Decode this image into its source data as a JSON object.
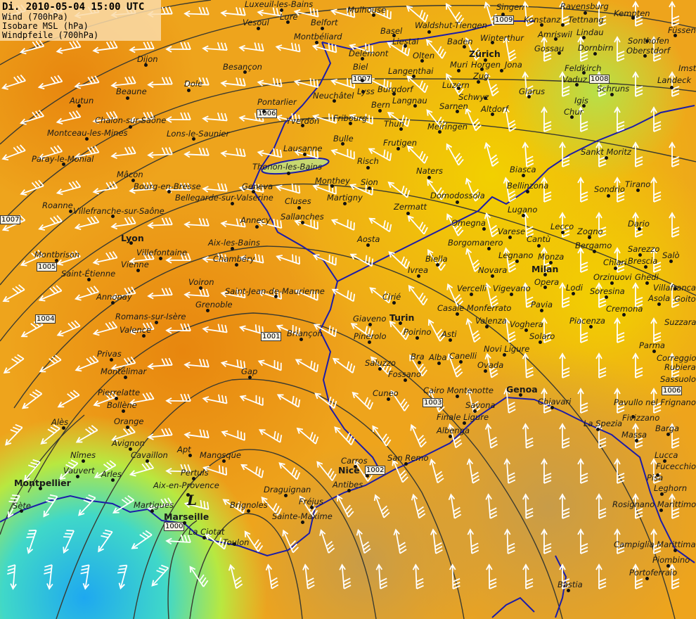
{
  "header": {
    "datetime": "Di. 2010-05-04 15:00 UTC",
    "layers": [
      "Wind (700hPa)",
      "Isobare MSL (hPa)",
      "Windpfeile (700hPa)"
    ]
  },
  "low_marker": "L",
  "colors": {
    "coast": "#1c1ca8",
    "isobar": "#3a3a30",
    "barb": "#ffffff",
    "orange": "#ec9418",
    "yellow": "#f0c808",
    "lime": "#c8e040",
    "cyan": "#30c8e8",
    "sea": "#c8a848"
  },
  "isobar_labels": [
    "1009",
    "1008",
    "1007",
    "1007",
    "1006",
    "1006",
    "1005",
    "1004",
    "1003",
    "1002",
    "1001",
    "1000",
    "1006"
  ],
  "cities": [
    "Luxeuil-les-Bains",
    "Vesoul",
    "Lure",
    "Belfort",
    "Mulhouse",
    "Singen",
    "Konstanz",
    "Tettnang",
    "Ravensburg",
    "Kempten",
    "Füssen",
    "Waldshut-Tiengen",
    "Basel",
    "Winterthur",
    "Amriswil",
    "Lindau",
    "Sonthofen",
    "Montbéliard",
    "Liestal",
    "Baden",
    "Gossau",
    "Dornbirn",
    "Oberstdorf",
    "Delémont",
    "Olten",
    "Zürich",
    "Dijon",
    "Besançon",
    "Langenthai",
    "Muri",
    "Horgen",
    "Jona",
    "Feldkirch",
    "Vaduz",
    "Imst",
    "Landeck",
    "Zug",
    "Biel",
    "Lyss",
    "Luzern",
    "Schwyz",
    "Glarus",
    "Schruns",
    "Beaune",
    "Autun",
    "Dole",
    "Pontarlier",
    "Neuchâtel",
    "Burgdorf",
    "Bern",
    "Langnau",
    "Sarnen",
    "Altdorf",
    "Igis",
    "Chur",
    "Yverdon",
    "Fribourg",
    "Thun",
    "Meiringen",
    "Chalon-sur-Saône",
    "Montceau-les-Mines",
    "Lons-le-Saunier",
    "Bulle",
    "Frutigen",
    "Lausanne",
    "Sankt Moritz",
    "Paray-le-Monial",
    "Risch",
    "Naters",
    "Biasca",
    "Thonon-les-Bains",
    "Mâcon",
    "Bourg-en-Bresse",
    "Geneva",
    "Monthey",
    "Sion",
    "Bellinzona",
    "Sondrio",
    "Tirano",
    "Bellegarde-sur-Valserine",
    "Martigny",
    "Domodossola",
    "Roanne",
    "Villefranche-sur-Saône",
    "Cluses",
    "Zermatt",
    "Lugano",
    "Sallanches",
    "Annecy",
    "Omegna",
    "Varese",
    "Lecco",
    "Zogno",
    "Dario",
    "Lyon",
    "Aosta",
    "Borgomanero",
    "Cantù",
    "Bergamo",
    "Sarezzo",
    "Montbrison",
    "Villefontaine",
    "Aix-les-Bains",
    "Chambéry",
    "Legnano",
    "Monza",
    "Biella",
    "Chiari",
    "Brescia",
    "Salò",
    "Saint-Étienne",
    "Vienne",
    "Ivrea",
    "Novara",
    "Milan",
    "Voiron",
    "Opera",
    "Orzinuovi",
    "Ghedi",
    "Villafranca",
    "Saint-Jean-de-Maurienne",
    "Vercelli",
    "Vigevano",
    "Lodi",
    "Soresina",
    "Goito",
    "Annonay",
    "Grenoble",
    "Asola",
    "Pavia",
    "Cirié",
    "Casale Monferrato",
    "Cremona",
    "Romans-sur-Isère",
    "Giaveno",
    "Turin",
    "Valenza",
    "Voghera",
    "Piacenza",
    "Suzzara",
    "Valence",
    "Briançon",
    "Pinerolo",
    "Poirino",
    "Asti",
    "Solaro",
    "Parma",
    "Privas",
    "Novi Ligure",
    "Bra",
    "Alba",
    "Canelli",
    "Ovada",
    "Correggio",
    "Saluzzo",
    "Gap",
    "Montélimar",
    "Fossano",
    "Rubiera",
    "Sassuolo",
    "Cuneo",
    "Cairo Montenotte",
    "Genoa",
    "Chiavari",
    "Pierrelatte",
    "Bollène",
    "Pavullo nel Frignano",
    "Savona",
    "Orange",
    "Alès",
    "Finale Ligure",
    "La Spezia",
    "Fivizzano",
    "Albenga",
    "Massa",
    "Barga",
    "Avignon",
    "Apt",
    "Manosque",
    "Cavaillon",
    "Nîmes",
    "Lucca",
    "Carros",
    "San Remo",
    "Vauvert",
    "Arles",
    "Pertuis",
    "Nice",
    "Fucecchio",
    "Montpellier",
    "Pisa",
    "Antibes",
    "Aix-en-Provence",
    "Draguignan",
    "Leghorn",
    "Sète",
    "Martigues",
    "Brignoles",
    "Fréjus",
    "Rosignano Marittimo",
    "Marseille",
    "Sainte-Maxime",
    "La Ciotat",
    "Toulon",
    "Campiglia Marittima",
    "Piombino",
    "Portoferraio",
    "Bastia"
  ]
}
